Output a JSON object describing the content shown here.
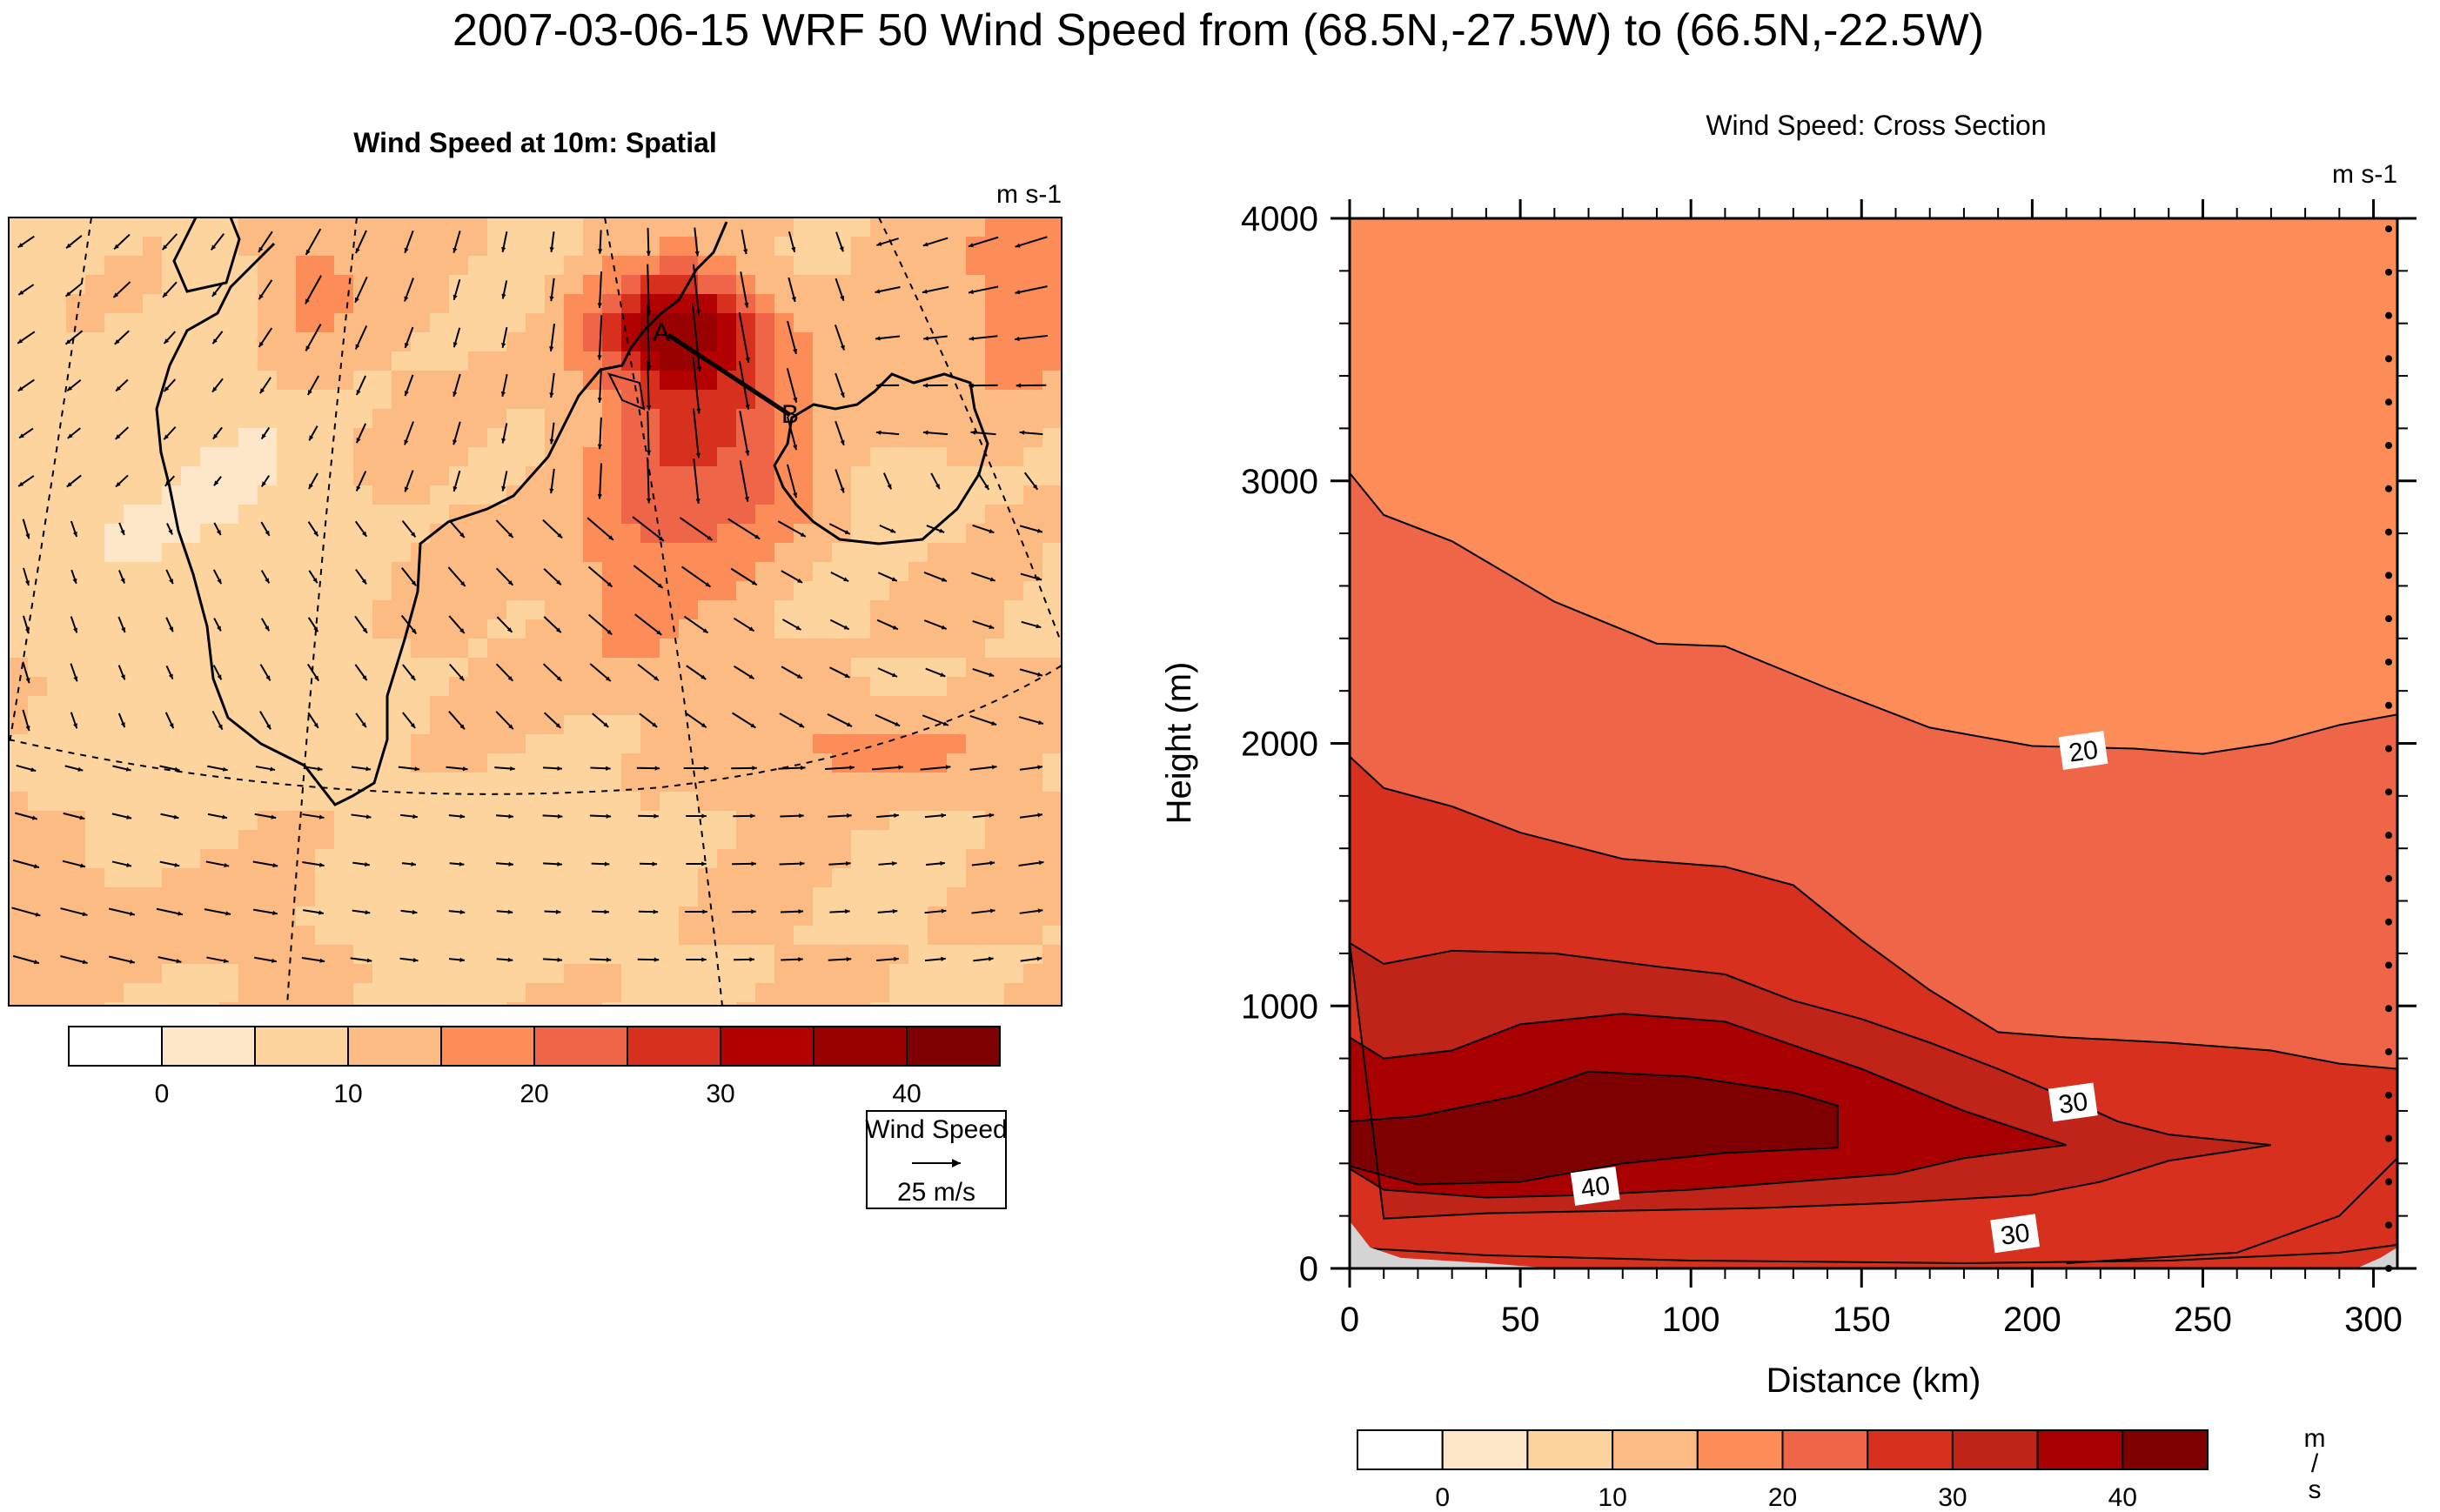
{
  "figure": {
    "title": "2007-03-06-15 WRF 50 Wind Speed from (68.5N,-27.5W) to (66.5N,-22.5W)"
  },
  "left_panel": {
    "title": "Wind Speed at 10m: Spatial",
    "units": "m s-1",
    "point_labels": [
      "A",
      "B"
    ],
    "vector_key": {
      "title": "Wind Speed",
      "value_label": "25 m/s"
    }
  },
  "right_panel": {
    "title": "Wind Speed: Cross Section",
    "units": "m s-1",
    "colorbar_units": [
      "m",
      "/",
      "s"
    ]
  },
  "colormap": {
    "levels": [
      -5,
      0,
      5,
      10,
      15,
      20,
      25,
      30,
      35,
      40,
      45
    ],
    "tick_values": [
      "0",
      "10",
      "20",
      "30",
      "40"
    ],
    "colors": [
      "#ffffff",
      "#fee6c8",
      "#fdd49e",
      "#fdbb84",
      "#fc8d59",
      "#ef6548",
      "#d7301f",
      "#b30000",
      "#990000",
      "#7f0000"
    ],
    "cross_colors": [
      "#ffffff",
      "#fee6c8",
      "#fdd49e",
      "#fdbb84",
      "#fc8d59",
      "#ef6548",
      "#d7301f",
      "#c02418",
      "#a80000",
      "#7f0000"
    ]
  },
  "chart_data": [
    {
      "type": "heatmap",
      "name": "Wind Speed at 10m: Spatial",
      "units": "m s-1",
      "color_levels": [
        -5,
        0,
        5,
        10,
        15,
        20,
        25,
        30,
        35,
        40,
        45
      ],
      "features": [
        "coastline",
        "lat-lon graticule",
        "wind vectors",
        "cross-section line A-B"
      ],
      "cross_section": {
        "start": "68.5N,-27.5W",
        "end": "66.5N,-22.5W"
      }
    },
    {
      "type": "area",
      "name": "Wind Speed: Cross Section",
      "xlabel": "Distance (km)",
      "ylabel": "Height (m)",
      "xlim": [
        0,
        307
      ],
      "ylim": [
        0,
        4000
      ],
      "x_ticks": [
        0,
        50,
        100,
        150,
        200,
        250,
        300
      ],
      "y_ticks": [
        0,
        1000,
        2000,
        3000,
        4000
      ],
      "contour_labels": [
        {
          "text": "20",
          "x": 215,
          "y": 1970
        },
        {
          "text": "30",
          "x": 212,
          "y": 630
        },
        {
          "text": "40",
          "x": 72,
          "y": 310
        },
        {
          "text": "30",
          "x": 195,
          "y": 130
        }
      ],
      "contours": [
        {
          "level": 20,
          "points": [
            [
              0,
              3030
            ],
            [
              10,
              2870
            ],
            [
              30,
              2770
            ],
            [
              60,
              2540
            ],
            [
              90,
              2380
            ],
            [
              110,
              2370
            ],
            [
              140,
              2210
            ],
            [
              170,
              2060
            ],
            [
              200,
              1990
            ],
            [
              230,
              1980
            ],
            [
              250,
              1960
            ],
            [
              270,
              2000
            ],
            [
              290,
              2070
            ],
            [
              307,
              2110
            ]
          ]
        },
        {
          "level": 25,
          "points": [
            [
              0,
              1950
            ],
            [
              10,
              1830
            ],
            [
              30,
              1760
            ],
            [
              50,
              1660
            ],
            [
              80,
              1560
            ],
            [
              110,
              1530
            ],
            [
              130,
              1460
            ],
            [
              150,
              1250
            ],
            [
              170,
              1060
            ],
            [
              190,
              900
            ],
            [
              210,
              880
            ],
            [
              240,
              860
            ],
            [
              270,
              830
            ],
            [
              290,
              780
            ],
            [
              307,
              760
            ]
          ]
        },
        {
          "level": 30,
          "points": [
            [
              0,
              1240
            ],
            [
              10,
              1160
            ],
            [
              30,
              1210
            ],
            [
              60,
              1200
            ],
            [
              90,
              1150
            ],
            [
              110,
              1120
            ],
            [
              130,
              1020
            ],
            [
              150,
              950
            ],
            [
              170,
              860
            ],
            [
              190,
              760
            ],
            [
              210,
              650
            ],
            [
              225,
              560
            ],
            [
              240,
              510
            ],
            [
              270,
              470
            ],
            [
              240,
              410
            ],
            [
              220,
              330
            ],
            [
              200,
              280
            ],
            [
              160,
              250
            ],
            [
              120,
              230
            ],
            [
              80,
              220
            ],
            [
              40,
              210
            ],
            [
              10,
              190
            ]
          ]
        },
        {
          "level": 35,
          "points": [
            [
              0,
              880
            ],
            [
              10,
              800
            ],
            [
              30,
              830
            ],
            [
              50,
              930
            ],
            [
              80,
              970
            ],
            [
              110,
              940
            ],
            [
              130,
              850
            ],
            [
              150,
              760
            ],
            [
              180,
              600
            ],
            [
              210,
              470
            ],
            [
              180,
              420
            ],
            [
              160,
              360
            ],
            [
              130,
              330
            ],
            [
              100,
              300
            ],
            [
              70,
              280
            ],
            [
              40,
              270
            ],
            [
              10,
              300
            ],
            [
              0,
              380
            ]
          ]
        },
        {
          "level": 40,
          "points": [
            [
              0,
              560
            ],
            [
              20,
              580
            ],
            [
              50,
              660
            ],
            [
              70,
              750
            ],
            [
              100,
              730
            ],
            [
              130,
              670
            ],
            [
              143,
              620
            ],
            [
              143,
              460
            ],
            [
              110,
              440
            ],
            [
              80,
              400
            ],
            [
              50,
              330
            ],
            [
              20,
              320
            ],
            [
              0,
              390
            ]
          ]
        }
      ]
    }
  ]
}
